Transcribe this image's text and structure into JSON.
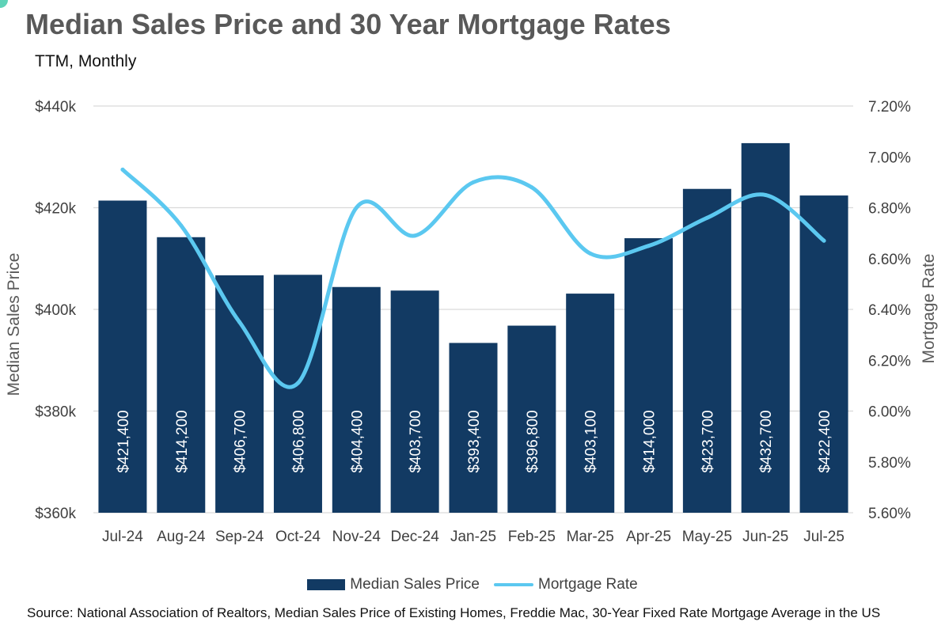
{
  "title": "Median Sales Price and 30 Year Mortgage Rates",
  "subtitle": "TTM, Monthly",
  "source": "Source: National Association of Realtors, Median Sales Price of Existing Homes, Freddie Mac, 30-Year Fixed Rate Mortgage Average in the US",
  "colors": {
    "bar": "#123a63",
    "line": "#5bc8f0",
    "grid": "#d9d9d9",
    "axis_text": "#404040"
  },
  "chart_data": {
    "type": "bar",
    "categories": [
      "Jul-24",
      "Aug-24",
      "Sep-24",
      "Oct-24",
      "Nov-24",
      "Dec-24",
      "Jan-25",
      "Feb-25",
      "Mar-25",
      "Apr-25",
      "May-25",
      "Jun-25",
      "Jul-25"
    ],
    "series": [
      {
        "name": "Median Sales Price",
        "type": "bar",
        "axis": "left",
        "values": [
          421400,
          414200,
          406700,
          406800,
          404400,
          403700,
          393400,
          396800,
          403100,
          414000,
          423700,
          432700,
          422400
        ],
        "labels": [
          "$421,400",
          "$414,200",
          "$406,700",
          "$406,800",
          "$404,400",
          "$403,700",
          "$393,400",
          "$396,800",
          "$403,100",
          "$414,000",
          "$423,700",
          "$432,700",
          "$422,400"
        ]
      },
      {
        "name": "Mortgage Rate",
        "type": "line",
        "axis": "right",
        "smooth": true,
        "values": [
          6.95,
          6.73,
          6.35,
          6.11,
          6.8,
          6.69,
          6.9,
          6.88,
          6.62,
          6.65,
          6.76,
          6.85,
          6.67
        ]
      }
    ],
    "ylabel": "Median Sales Price",
    "y2label": "Mortgage Rate",
    "ylim": [
      360000,
      440000
    ],
    "y2lim": [
      5.6,
      7.2
    ],
    "yticks": [
      "$360k",
      "$380k",
      "$400k",
      "$420k",
      "$440k"
    ],
    "y2ticks": [
      "5.60%",
      "5.80%",
      "6.00%",
      "6.20%",
      "6.40%",
      "6.60%",
      "6.80%",
      "7.00%",
      "7.20%"
    ],
    "grid": true,
    "legend": "bottom-center"
  }
}
